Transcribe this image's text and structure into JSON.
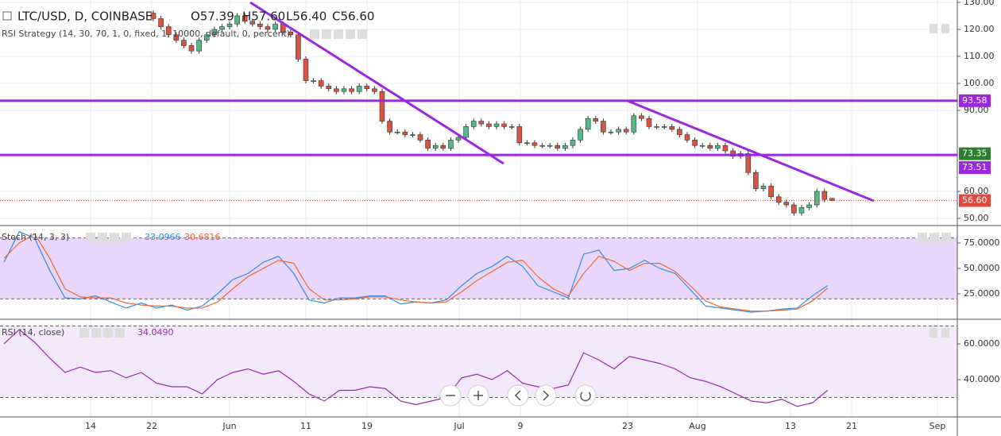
{
  "header": {
    "symbol": "LTC/USD, D, COINBASE",
    "open": "O57.39",
    "high": "H57.60",
    "low": "L56.40",
    "close": "C56.60",
    "strategy": "RSI Strategy (14, 30, 70, 1, 0, fixed, 1, 10000, default, 0, percent)"
  },
  "x_ticks": [
    "14",
    "22",
    "Jun",
    "11",
    "19",
    "Jul",
    "9",
    "23",
    "Aug",
    "13",
    "21",
    "Sep"
  ],
  "chart_data": [
    {
      "type": "candlestick",
      "up_color": "#53b987",
      "down_color": "#d75442",
      "open": [
        126,
        124,
        121,
        118,
        116,
        114,
        112,
        116,
        118,
        120,
        121,
        122,
        125,
        123,
        122,
        121,
        120,
        122,
        119,
        118,
        109,
        101,
        101,
        99,
        98,
        97,
        98,
        97,
        99,
        98,
        97,
        86,
        82,
        82,
        81,
        81,
        79,
        76,
        77,
        76,
        79,
        80,
        84,
        86,
        85,
        84,
        85,
        84,
        84,
        78,
        78,
        77,
        77,
        77,
        76,
        77,
        79,
        83,
        87,
        86,
        82,
        82,
        83,
        82,
        88,
        87,
        84,
        84,
        84,
        83,
        81,
        79,
        77,
        77,
        76,
        77,
        75,
        73,
        74,
        67,
        61,
        62,
        58,
        56,
        55,
        52,
        54,
        55,
        60,
        57.39
      ],
      "high": [
        127,
        125,
        122,
        119,
        117,
        115,
        117,
        119,
        121,
        122,
        123,
        126,
        126,
        124,
        123,
        122,
        123,
        123,
        120,
        119,
        110,
        102,
        102,
        100,
        99,
        99,
        99,
        100,
        100,
        99,
        98,
        87,
        83,
        83,
        82,
        82,
        80,
        78,
        78,
        80,
        81,
        85,
        87,
        87,
        86,
        86,
        86,
        85,
        85,
        79,
        79,
        78,
        78,
        78,
        78,
        80,
        84,
        88,
        88,
        87,
        83,
        84,
        84,
        89,
        89,
        88,
        85,
        85,
        85,
        84,
        82,
        80,
        78,
        78,
        78,
        78,
        76,
        75,
        75,
        68,
        63,
        63,
        59,
        57,
        56,
        55,
        56,
        61,
        61,
        57.6
      ],
      "low": [
        123,
        120,
        117,
        115,
        113,
        111,
        111,
        115,
        117,
        119,
        120,
        121,
        122,
        121,
        120,
        119,
        119,
        118,
        117,
        108,
        100,
        100,
        98,
        97,
        96,
        96,
        96,
        96,
        97,
        96,
        85,
        81,
        81,
        80,
        80,
        78,
        75,
        75,
        75,
        75,
        78,
        79,
        83,
        84,
        83,
        83,
        83,
        83,
        77,
        77,
        76,
        76,
        76,
        75,
        75,
        76,
        78,
        82,
        85,
        81,
        81,
        81,
        81,
        81,
        86,
        83,
        83,
        83,
        82,
        80,
        78,
        76,
        76,
        75,
        75,
        74,
        72,
        72,
        66,
        60,
        60,
        57,
        55,
        54,
        51,
        51,
        53,
        54,
        56,
        56.4
      ],
      "close": [
        124,
        121,
        118,
        116,
        114,
        112,
        116,
        118,
        120,
        121,
        122,
        125,
        123,
        122,
        121,
        120,
        122,
        119,
        118,
        109,
        101,
        101,
        99,
        98,
        97,
        98,
        97,
        99,
        98,
        97,
        86,
        82,
        82,
        81,
        81,
        79,
        76,
        77,
        76,
        79,
        80,
        84,
        86,
        85,
        84,
        85,
        84,
        84,
        78,
        78,
        77,
        77,
        77,
        76,
        77,
        79,
        83,
        87,
        86,
        82,
        82,
        83,
        82,
        88,
        87,
        84,
        84,
        84,
        83,
        81,
        79,
        77,
        77,
        76,
        77,
        75,
        73,
        74,
        67,
        61,
        62,
        58,
        56,
        55,
        52,
        54,
        55,
        60,
        57,
        56.6
      ],
      "ylim": [
        47.65,
        130.88
      ],
      "yticks": [
        {
          "value": 130,
          "label": "130.00"
        },
        {
          "value": 120,
          "label": "120.00"
        },
        {
          "value": 110,
          "label": "110.00"
        },
        {
          "value": 100,
          "label": "100.00"
        },
        {
          "value": 90,
          "label": "90.00"
        },
        {
          "value": 60,
          "label": "60.00"
        },
        {
          "value": 50,
          "label": "50.00"
        }
      ],
      "price_lines": [
        {
          "value": 93.58,
          "label": "93.58",
          "color": "#9c27e0"
        },
        {
          "value": 73.51,
          "label": "73.51",
          "color": "#9c27e0"
        }
      ],
      "price_labels": [
        {
          "value": 73.35,
          "label": "73.35",
          "color": "#2e7d32"
        },
        {
          "value": 56.6,
          "label": "56.60",
          "color": "#e0483c"
        }
      ]
    },
    {
      "type": "line",
      "title": "Stoch (14, 3, 3)",
      "ylim": [
        1.56,
        89.84
      ],
      "levels": [
        20,
        80
      ],
      "band_color": "#ead6fb",
      "yticks": [
        {
          "value": 75,
          "label": "75.0000"
        },
        {
          "value": 50,
          "label": "50.0000"
        },
        {
          "value": 25,
          "label": "25.0000"
        }
      ],
      "series": [
        {
          "name": "33.0966",
          "color": "#2f8fe8",
          "values": [
            56,
            86,
            80,
            48,
            21,
            20,
            23,
            17,
            11,
            16,
            11,
            14,
            9,
            13,
            25,
            39,
            45,
            56,
            62,
            45,
            19,
            16,
            21,
            21,
            23,
            23,
            15,
            17,
            16,
            19,
            33,
            45,
            52,
            62,
            52,
            33,
            27,
            21,
            64,
            68,
            48,
            50,
            58,
            50,
            45,
            29,
            13,
            11,
            9,
            7,
            8,
            10,
            11,
            23,
            33.0966
          ]
        },
        {
          "name": "30.6816",
          "color": "#f2662f",
          "values": [
            60,
            75,
            84,
            60,
            30,
            22,
            21,
            21,
            16,
            14,
            13,
            13,
            11,
            11,
            17,
            30,
            42,
            50,
            58,
            55,
            30,
            19,
            19,
            20,
            22,
            22,
            19,
            17,
            16,
            17,
            27,
            38,
            47,
            56,
            58,
            42,
            30,
            23,
            45,
            62,
            57,
            48,
            55,
            55,
            47,
            33,
            18,
            12,
            10,
            8,
            8,
            9,
            10,
            18,
            30.6816
          ]
        }
      ]
    },
    {
      "type": "line",
      "title": "RSI (14, close)",
      "ylim": [
        21.33,
        72.44
      ],
      "levels": [
        30,
        70
      ],
      "band_color": "#f4e8fc",
      "yticks": [
        {
          "value": 60,
          "label": "60.0000"
        },
        {
          "value": 40,
          "label": "40.0000"
        }
      ],
      "series": [
        {
          "name": "34.0490",
          "color": "#9a2ab0",
          "values": [
            60,
            68,
            61,
            52,
            44,
            47,
            44,
            45,
            41,
            44,
            38,
            36,
            36,
            32,
            40,
            44,
            46,
            43,
            45,
            39,
            32,
            28,
            34,
            34,
            36,
            35,
            28,
            26,
            28,
            30,
            41,
            43,
            40,
            45,
            38,
            36,
            35,
            37,
            55,
            51,
            46,
            53,
            51,
            49,
            46,
            41,
            39,
            36,
            32,
            28,
            27,
            29,
            25,
            27,
            34.049
          ]
        }
      ]
    }
  ]
}
